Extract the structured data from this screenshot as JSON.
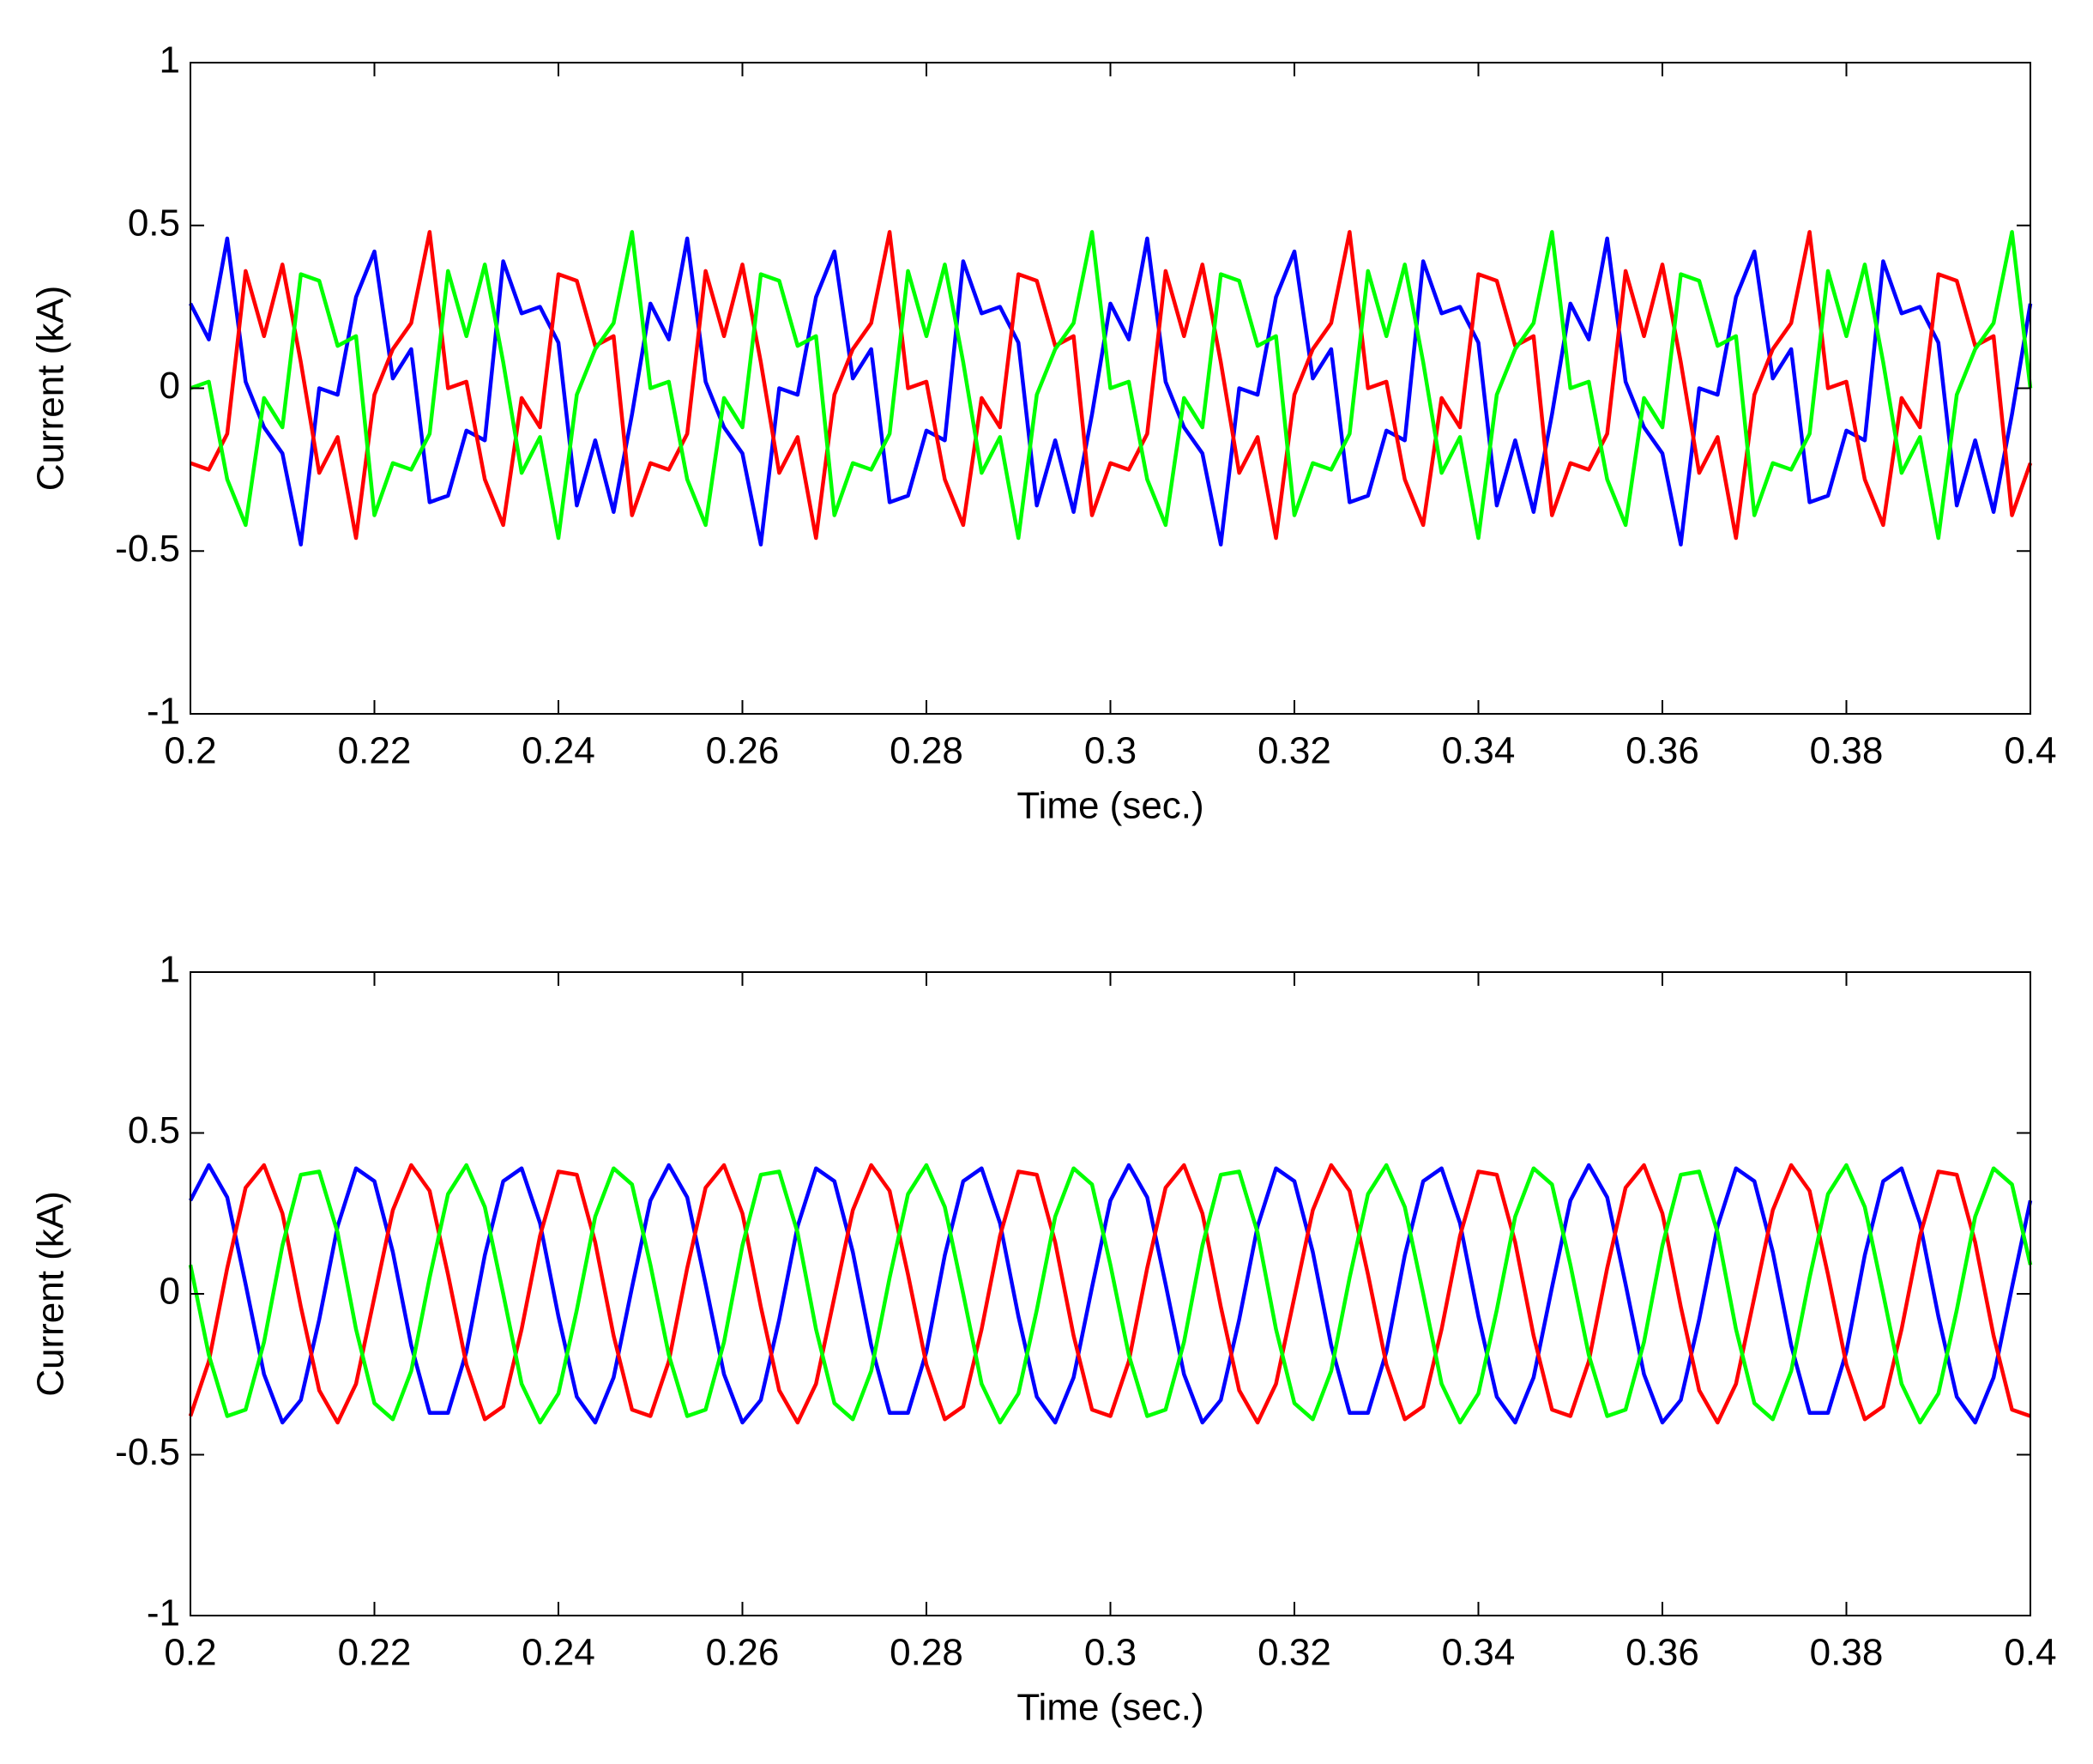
{
  "chart_data": [
    {
      "type": "line",
      "xlabel": "Time (sec.)",
      "ylabel": "Current (kA)",
      "x": [
        0.2,
        0.202,
        0.204,
        0.206,
        0.208,
        0.21,
        0.212,
        0.214,
        0.216,
        0.218,
        0.22,
        0.222,
        0.224,
        0.226,
        0.228,
        0.23,
        0.232,
        0.234,
        0.236,
        0.238,
        0.24,
        0.242,
        0.244,
        0.246,
        0.248,
        0.25,
        0.252,
        0.254,
        0.256,
        0.258,
        0.26,
        0.262,
        0.264,
        0.266,
        0.268,
        0.27,
        0.272,
        0.274,
        0.276,
        0.278,
        0.28,
        0.282,
        0.284,
        0.286,
        0.288,
        0.29,
        0.292,
        0.294,
        0.296,
        0.298,
        0.3,
        0.302,
        0.304,
        0.306,
        0.308,
        0.31,
        0.312,
        0.314,
        0.316,
        0.318,
        0.32,
        0.322,
        0.324,
        0.326,
        0.328,
        0.33,
        0.332,
        0.334,
        0.336,
        0.338,
        0.34,
        0.342,
        0.344,
        0.346,
        0.348,
        0.35,
        0.352,
        0.354,
        0.356,
        0.358,
        0.36,
        0.362,
        0.364,
        0.366,
        0.368,
        0.37,
        0.372,
        0.374,
        0.376,
        0.378,
        0.38,
        0.382,
        0.384,
        0.386,
        0.388,
        0.39,
        0.392,
        0.394,
        0.396,
        0.398,
        0.4
      ],
      "series": [
        {
          "color": "#0000ff",
          "values": [
            0.26,
            0.15,
            0.46,
            0.02,
            -0.12,
            -0.2,
            -0.48,
            0,
            -0.02,
            0.28,
            0.42,
            0.03,
            0.12,
            -0.35,
            -0.33,
            -0.13,
            -0.16,
            0.39,
            0.23,
            0.25,
            0.14,
            -0.36,
            -0.16,
            -0.38,
            -0.08,
            0.26,
            0.15,
            0.46,
            0.02,
            -0.12,
            -0.2,
            -0.48,
            0,
            -0.02,
            0.28,
            0.42,
            0.03,
            0.12,
            -0.35,
            -0.33,
            -0.13,
            -0.16,
            0.39,
            0.23,
            0.25,
            0.14,
            -0.36,
            -0.16,
            -0.38,
            -0.08,
            0.26,
            0.15,
            0.46,
            0.02,
            -0.12,
            -0.2,
            -0.48,
            0,
            -0.02,
            0.28,
            0.42,
            0.03,
            0.12,
            -0.35,
            -0.33,
            -0.13,
            -0.16,
            0.39,
            0.23,
            0.25,
            0.14,
            -0.36,
            -0.16,
            -0.38,
            -0.08,
            0.26,
            0.15,
            0.46,
            0.02,
            -0.12,
            -0.2,
            -0.48,
            0,
            -0.02,
            0.28,
            0.42,
            0.03,
            0.12,
            -0.35,
            -0.33,
            -0.13,
            -0.16,
            0.39,
            0.23,
            0.25,
            0.14,
            -0.36,
            -0.16,
            -0.38,
            -0.08,
            0.26
          ]
        },
        {
          "color": "#ff0000",
          "values": [
            -0.23,
            -0.25,
            -0.14,
            0.36,
            0.16,
            0.38,
            0.08,
            -0.26,
            -0.15,
            -0.46,
            -0.02,
            0.12,
            0.2,
            0.48,
            0,
            0.02,
            -0.28,
            -0.42,
            -0.03,
            -0.12,
            0.35,
            0.33,
            0.13,
            0.16,
            -0.39,
            -0.23,
            -0.25,
            -0.14,
            0.36,
            0.16,
            0.38,
            0.08,
            -0.26,
            -0.15,
            -0.46,
            -0.02,
            0.12,
            0.2,
            0.48,
            0,
            0.02,
            -0.28,
            -0.42,
            -0.03,
            -0.12,
            0.35,
            0.33,
            0.13,
            0.16,
            -0.39,
            -0.23,
            -0.25,
            -0.14,
            0.36,
            0.16,
            0.38,
            0.08,
            -0.26,
            -0.15,
            -0.46,
            -0.02,
            0.12,
            0.2,
            0.48,
            0,
            0.02,
            -0.28,
            -0.42,
            -0.03,
            -0.12,
            0.35,
            0.33,
            0.13,
            0.16,
            -0.39,
            -0.23,
            -0.25,
            -0.14,
            0.36,
            0.16,
            0.38,
            0.08,
            -0.26,
            -0.15,
            -0.46,
            -0.02,
            0.12,
            0.2,
            0.48,
            0,
            0.02,
            -0.28,
            -0.42,
            -0.03,
            -0.12,
            0.35,
            0.33,
            0.13,
            0.16,
            -0.39,
            -0.23
          ]
        },
        {
          "color": "#00ff00",
          "values": [
            0,
            0.02,
            -0.28,
            -0.42,
            -0.03,
            -0.12,
            0.35,
            0.33,
            0.13,
            0.16,
            -0.39,
            -0.23,
            -0.25,
            -0.14,
            0.36,
            0.16,
            0.38,
            0.08,
            -0.26,
            -0.15,
            -0.46,
            -0.02,
            0.12,
            0.2,
            0.48,
            0,
            0.02,
            -0.28,
            -0.42,
            -0.03,
            -0.12,
            0.35,
            0.33,
            0.13,
            0.16,
            -0.39,
            -0.23,
            -0.25,
            -0.14,
            0.36,
            0.16,
            0.38,
            0.08,
            -0.26,
            -0.15,
            -0.46,
            -0.02,
            0.12,
            0.2,
            0.48,
            0,
            0.02,
            -0.28,
            -0.42,
            -0.03,
            -0.12,
            0.35,
            0.33,
            0.13,
            0.16,
            -0.39,
            -0.23,
            -0.25,
            -0.14,
            0.36,
            0.16,
            0.38,
            0.08,
            -0.26,
            -0.15,
            -0.46,
            -0.02,
            0.12,
            0.2,
            0.48,
            0,
            0.02,
            -0.28,
            -0.42,
            -0.03,
            -0.12,
            0.35,
            0.33,
            0.13,
            0.16,
            -0.39,
            -0.23,
            -0.25,
            -0.14,
            0.36,
            0.16,
            0.38,
            0.08,
            -0.26,
            -0.15,
            -0.46,
            -0.02,
            0.12,
            0.2,
            0.48,
            0
          ]
        }
      ],
      "xlim": [
        0.2,
        0.4
      ],
      "xticks": [
        0.2,
        0.22,
        0.24,
        0.26,
        0.28,
        0.3,
        0.32,
        0.34,
        0.36,
        0.38,
        0.4
      ],
      "ylim": [
        -1,
        1
      ],
      "yticks": [
        -1,
        -0.5,
        0,
        0.5,
        1
      ]
    },
    {
      "type": "line",
      "xlabel": "Time (sec.)",
      "ylabel": "Current (kA)",
      "x": [
        0.2,
        0.202,
        0.204,
        0.206,
        0.208,
        0.21,
        0.212,
        0.214,
        0.216,
        0.218,
        0.22,
        0.222,
        0.224,
        0.226,
        0.228,
        0.23,
        0.232,
        0.234,
        0.236,
        0.238,
        0.24,
        0.242,
        0.244,
        0.246,
        0.248,
        0.25,
        0.252,
        0.254,
        0.256,
        0.258,
        0.26,
        0.262,
        0.264,
        0.266,
        0.268,
        0.27,
        0.272,
        0.274,
        0.276,
        0.278,
        0.28,
        0.282,
        0.284,
        0.286,
        0.288,
        0.29,
        0.292,
        0.294,
        0.296,
        0.298,
        0.3,
        0.302,
        0.304,
        0.306,
        0.308,
        0.31,
        0.312,
        0.314,
        0.316,
        0.318,
        0.32,
        0.322,
        0.324,
        0.326,
        0.328,
        0.33,
        0.332,
        0.334,
        0.336,
        0.338,
        0.34,
        0.342,
        0.344,
        0.346,
        0.348,
        0.35,
        0.352,
        0.354,
        0.356,
        0.358,
        0.36,
        0.362,
        0.364,
        0.366,
        0.368,
        0.37,
        0.372,
        0.374,
        0.376,
        0.378,
        0.38,
        0.382,
        0.384,
        0.386,
        0.388,
        0.39,
        0.392,
        0.394,
        0.396,
        0.398,
        0.4
      ],
      "series": [
        {
          "color": "#0000ff",
          "values": [
            0.29,
            0.4,
            0.3,
            0.03,
            -0.25,
            -0.4,
            -0.33,
            -0.08,
            0.21,
            0.39,
            0.35,
            0.13,
            -0.16,
            -0.37,
            -0.37,
            -0.18,
            0.12,
            0.35,
            0.39,
            0.22,
            -0.07,
            -0.32,
            -0.4,
            -0.26,
            0.02,
            0.29,
            0.4,
            0.3,
            0.03,
            -0.25,
            -0.4,
            -0.33,
            -0.08,
            0.21,
            0.39,
            0.35,
            0.13,
            -0.16,
            -0.37,
            -0.37,
            -0.18,
            0.12,
            0.35,
            0.39,
            0.22,
            -0.07,
            -0.32,
            -0.4,
            -0.26,
            0.02,
            0.29,
            0.4,
            0.3,
            0.03,
            -0.25,
            -0.4,
            -0.33,
            -0.08,
            0.21,
            0.39,
            0.35,
            0.13,
            -0.16,
            -0.37,
            -0.37,
            -0.18,
            0.12,
            0.35,
            0.39,
            0.22,
            -0.07,
            -0.32,
            -0.4,
            -0.26,
            0.02,
            0.29,
            0.4,
            0.3,
            0.03,
            -0.25,
            -0.4,
            -0.33,
            -0.08,
            0.21,
            0.39,
            0.35,
            0.13,
            -0.16,
            -0.37,
            -0.37,
            -0.18,
            0.12,
            0.35,
            0.39,
            0.22,
            -0.07,
            -0.32,
            -0.4,
            -0.26,
            0.02,
            0.29
          ]
        },
        {
          "color": "#ff0000",
          "values": [
            -0.38,
            -0.21,
            0.08,
            0.33,
            0.4,
            0.25,
            -0.04,
            -0.3,
            -0.4,
            -0.28,
            -0.01,
            0.26,
            0.4,
            0.32,
            0.06,
            -0.22,
            -0.39,
            -0.35,
            -0.11,
            0.18,
            0.38,
            0.37,
            0.16,
            -0.13,
            -0.36,
            -0.38,
            -0.21,
            0.08,
            0.33,
            0.4,
            0.25,
            -0.04,
            -0.3,
            -0.4,
            -0.28,
            -0.01,
            0.26,
            0.4,
            0.32,
            0.06,
            -0.22,
            -0.39,
            -0.35,
            -0.11,
            0.18,
            0.38,
            0.37,
            0.16,
            -0.13,
            -0.36,
            -0.38,
            -0.21,
            0.08,
            0.33,
            0.4,
            0.25,
            -0.04,
            -0.3,
            -0.4,
            -0.28,
            -0.01,
            0.26,
            0.4,
            0.32,
            0.06,
            -0.22,
            -0.39,
            -0.35,
            -0.11,
            0.18,
            0.38,
            0.37,
            0.16,
            -0.13,
            -0.36,
            -0.38,
            -0.21,
            0.08,
            0.33,
            0.4,
            0.25,
            -0.04,
            -0.3,
            -0.4,
            -0.28,
            -0.01,
            0.26,
            0.4,
            0.32,
            0.06,
            -0.22,
            -0.39,
            -0.35,
            -0.11,
            0.18,
            0.38,
            0.37,
            0.16,
            -0.13,
            -0.36,
            -0.38
          ]
        },
        {
          "color": "#00ff00",
          "values": [
            0.09,
            -0.19,
            -0.38,
            -0.36,
            -0.15,
            0.15,
            0.37,
            0.38,
            0.19,
            -0.11,
            -0.34,
            -0.39,
            -0.24,
            0.05,
            0.31,
            0.4,
            0.27,
            0,
            -0.28,
            -0.4,
            -0.31,
            -0.05,
            0.24,
            0.39,
            0.34,
            0.09,
            -0.19,
            -0.38,
            -0.36,
            -0.15,
            0.15,
            0.37,
            0.38,
            0.19,
            -0.11,
            -0.34,
            -0.39,
            -0.24,
            0.05,
            0.31,
            0.4,
            0.27,
            0,
            -0.28,
            -0.4,
            -0.31,
            -0.05,
            0.24,
            0.39,
            0.34,
            0.09,
            -0.19,
            -0.38,
            -0.36,
            -0.15,
            0.15,
            0.37,
            0.38,
            0.19,
            -0.11,
            -0.34,
            -0.39,
            -0.24,
            0.05,
            0.31,
            0.4,
            0.27,
            0,
            -0.28,
            -0.4,
            -0.31,
            -0.05,
            0.24,
            0.39,
            0.34,
            0.09,
            -0.19,
            -0.38,
            -0.36,
            -0.15,
            0.15,
            0.37,
            0.38,
            0.19,
            -0.11,
            -0.34,
            -0.39,
            -0.24,
            0.05,
            0.31,
            0.4,
            0.27,
            0,
            -0.28,
            -0.4,
            -0.31,
            -0.05,
            0.24,
            0.39,
            0.34,
            0.09
          ]
        }
      ],
      "xlim": [
        0.2,
        0.4
      ],
      "xticks": [
        0.2,
        0.22,
        0.24,
        0.26,
        0.28,
        0.3,
        0.32,
        0.34,
        0.36,
        0.38,
        0.4
      ],
      "ylim": [
        -1,
        1
      ],
      "yticks": [
        -1,
        -0.5,
        0,
        0.5,
        1
      ]
    }
  ]
}
